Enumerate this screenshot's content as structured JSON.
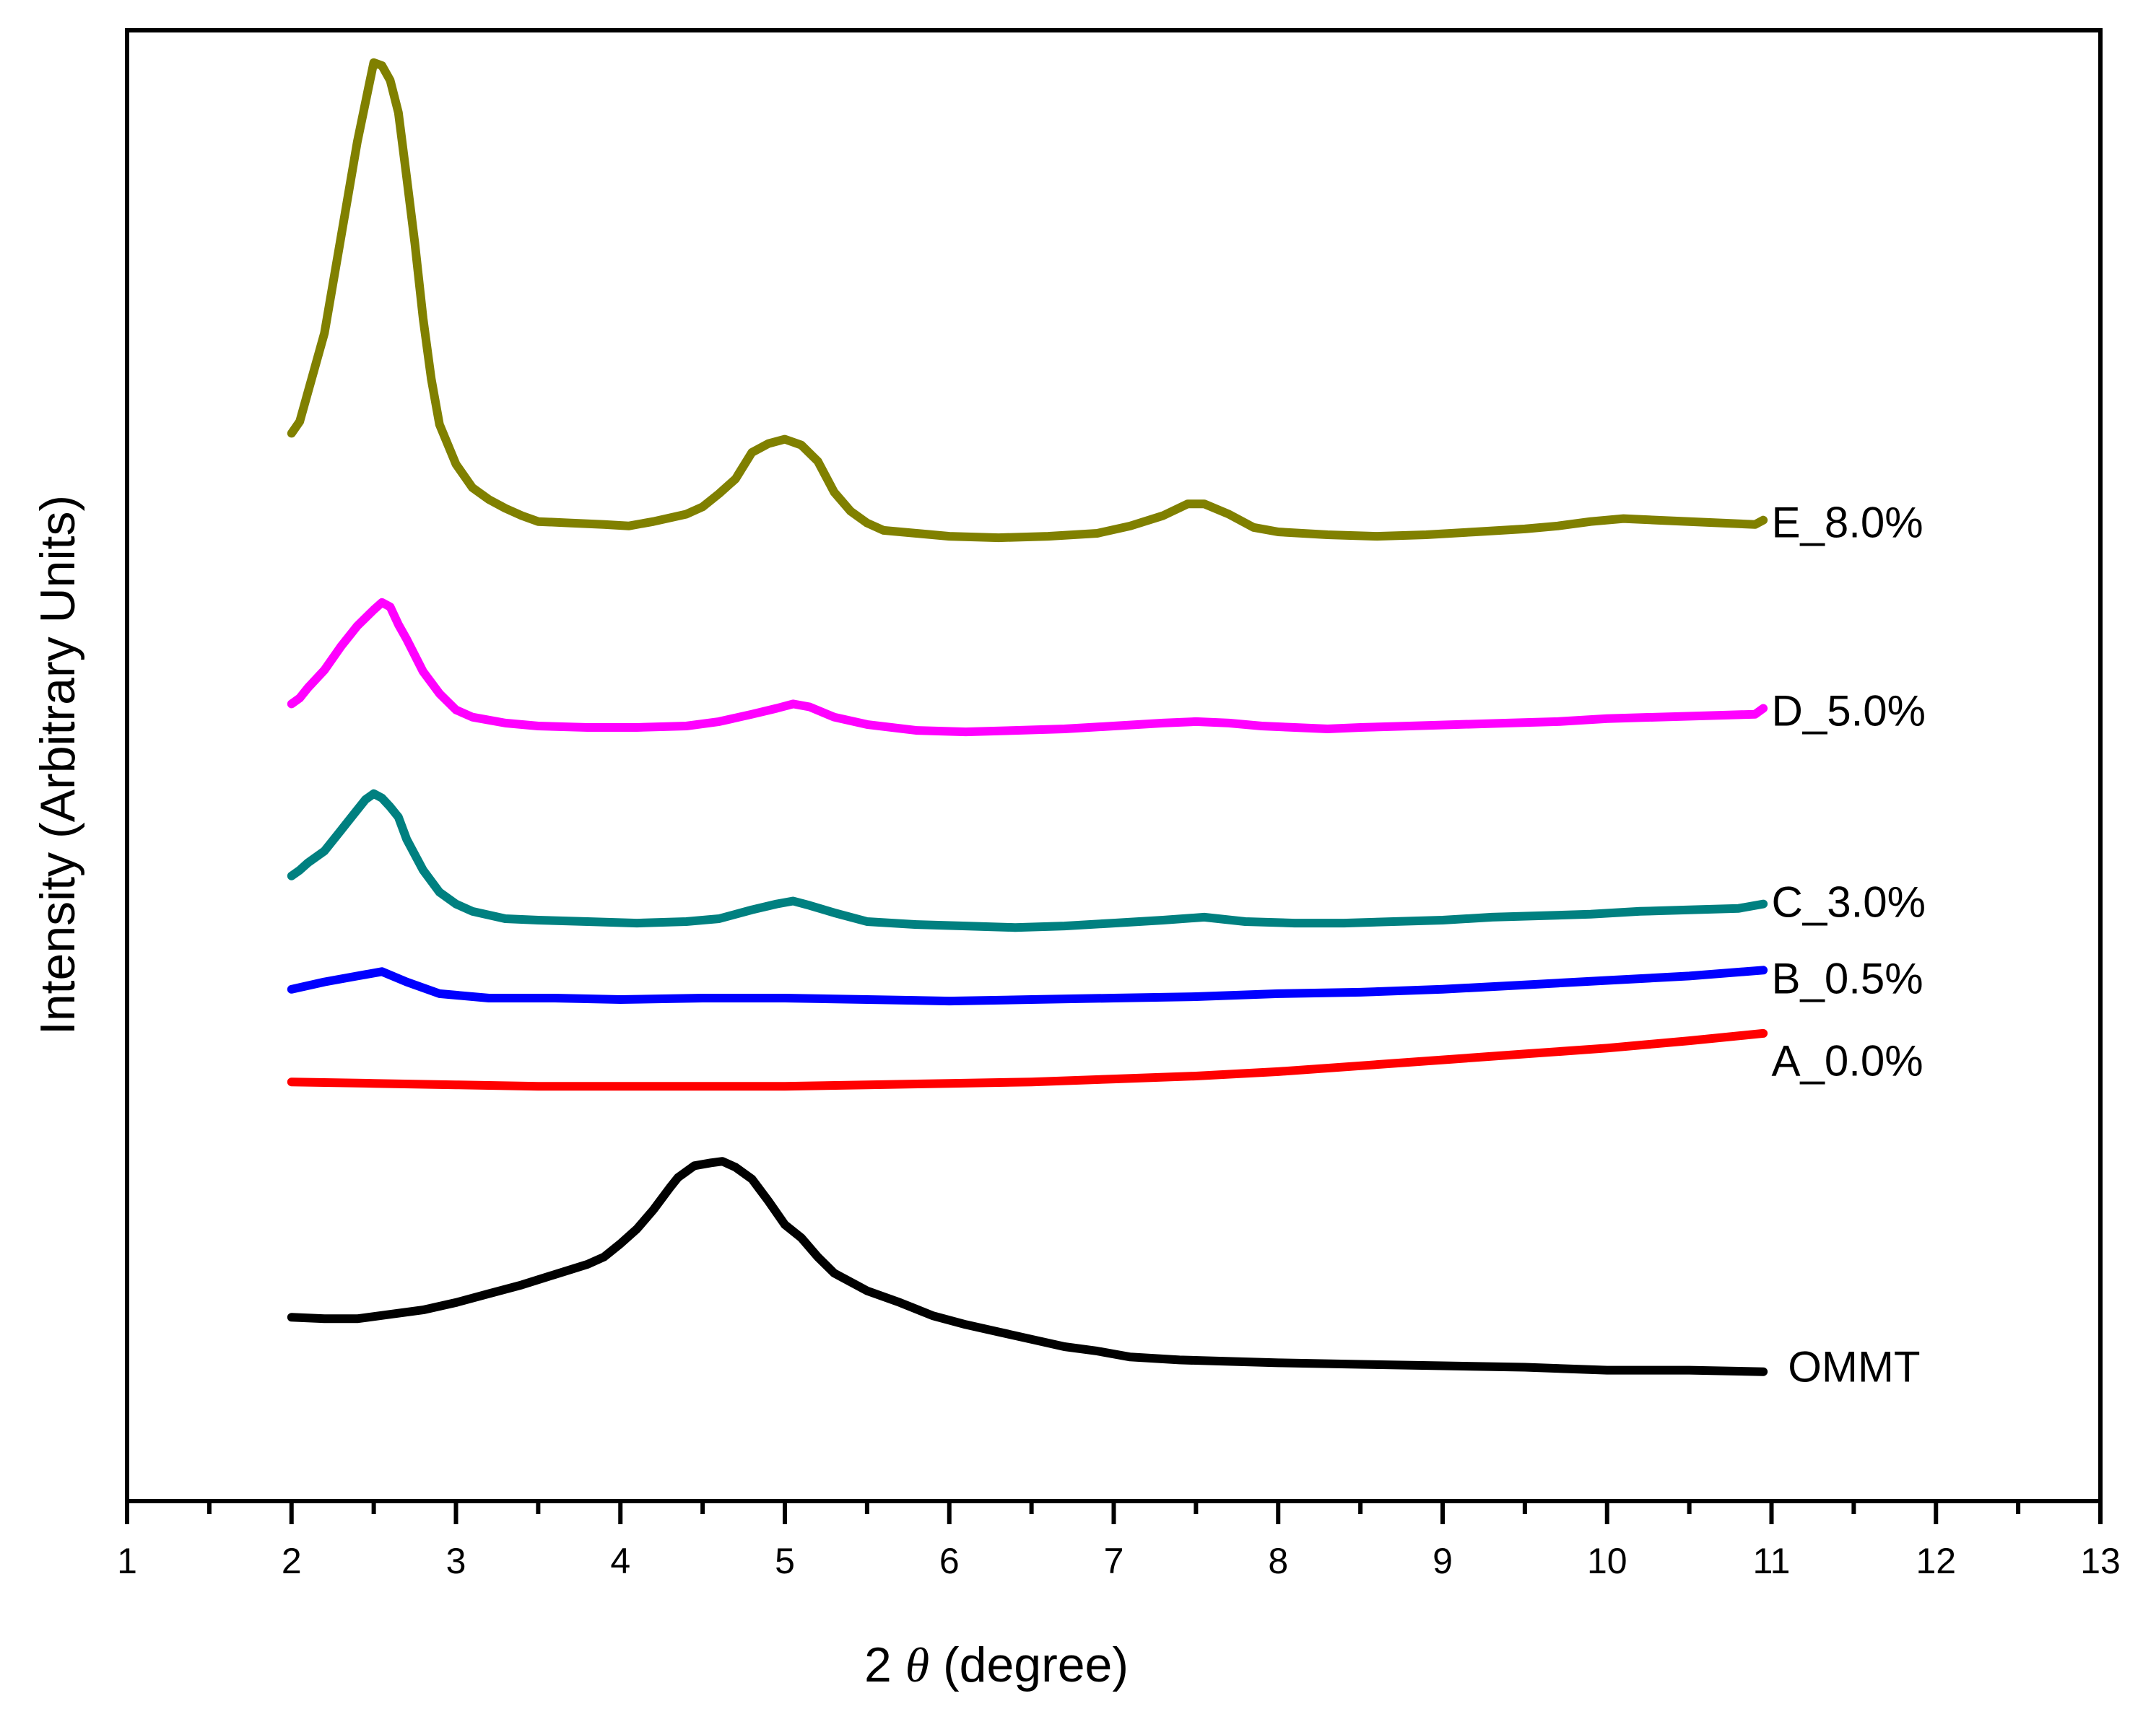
{
  "chart_data": {
    "type": "line",
    "title": "",
    "xlabel_prefix": "2 ",
    "xlabel_symbol": "θ",
    "xlabel_suffix": " (degree)",
    "ylabel": "Intensity (Arbitrary Units)",
    "xlim": [
      1,
      13
    ],
    "ylim": [
      0,
      100
    ],
    "x_major_ticks": [
      "1",
      "2",
      "3",
      "4",
      "5",
      "6",
      "7",
      "8",
      "9",
      "10",
      "11",
      "12",
      "13"
    ],
    "y_ticks_shown": false,
    "grid": false,
    "series": [
      {
        "name": "E_8.0%",
        "color": "#808000",
        "points": [
          [
            2.0,
            72.6
          ],
          [
            2.05,
            73.4
          ],
          [
            2.1,
            75.4
          ],
          [
            2.2,
            79.4
          ],
          [
            2.3,
            85.9
          ],
          [
            2.4,
            92.4
          ],
          [
            2.47,
            96.2
          ],
          [
            2.5,
            97.8
          ],
          [
            2.55,
            97.6
          ],
          [
            2.6,
            96.6
          ],
          [
            2.65,
            94.4
          ],
          [
            2.7,
            90.0
          ],
          [
            2.75,
            85.5
          ],
          [
            2.8,
            80.4
          ],
          [
            2.85,
            76.3
          ],
          [
            2.9,
            73.2
          ],
          [
            3.0,
            70.5
          ],
          [
            3.1,
            68.9
          ],
          [
            3.2,
            68.1
          ],
          [
            3.3,
            67.5
          ],
          [
            3.4,
            67.0
          ],
          [
            3.5,
            66.6
          ],
          [
            3.7,
            66.5
          ],
          [
            3.9,
            66.4
          ],
          [
            4.05,
            66.3
          ],
          [
            4.2,
            66.6
          ],
          [
            4.4,
            67.1
          ],
          [
            4.5,
            67.6
          ],
          [
            4.6,
            68.5
          ],
          [
            4.7,
            69.5
          ],
          [
            4.8,
            71.3
          ],
          [
            4.9,
            71.9
          ],
          [
            5.0,
            72.2
          ],
          [
            5.1,
            71.8
          ],
          [
            5.2,
            70.7
          ],
          [
            5.3,
            68.6
          ],
          [
            5.4,
            67.3
          ],
          [
            5.5,
            66.5
          ],
          [
            5.6,
            66.0
          ],
          [
            5.8,
            65.8
          ],
          [
            6.0,
            65.6
          ],
          [
            6.3,
            65.5
          ],
          [
            6.6,
            65.6
          ],
          [
            6.9,
            65.8
          ],
          [
            7.1,
            66.3
          ],
          [
            7.3,
            67.0
          ],
          [
            7.45,
            67.8
          ],
          [
            7.55,
            67.8
          ],
          [
            7.7,
            67.1
          ],
          [
            7.85,
            66.2
          ],
          [
            8.0,
            65.9
          ],
          [
            8.3,
            65.7
          ],
          [
            8.6,
            65.6
          ],
          [
            8.9,
            65.7
          ],
          [
            9.2,
            65.9
          ],
          [
            9.5,
            66.1
          ],
          [
            9.7,
            66.3
          ],
          [
            9.9,
            66.6
          ],
          [
            10.1,
            66.8
          ],
          [
            10.3,
            66.7
          ],
          [
            10.5,
            66.6
          ],
          [
            10.7,
            66.5
          ],
          [
            10.9,
            66.4
          ],
          [
            10.95,
            66.7
          ]
        ]
      },
      {
        "name": "D_5.0%",
        "color": "#ff00ff",
        "points": [
          [
            2.0,
            54.2
          ],
          [
            2.05,
            54.6
          ],
          [
            2.1,
            55.3
          ],
          [
            2.2,
            56.5
          ],
          [
            2.3,
            58.1
          ],
          [
            2.4,
            59.5
          ],
          [
            2.5,
            60.6
          ],
          [
            2.55,
            61.1
          ],
          [
            2.6,
            60.8
          ],
          [
            2.65,
            59.6
          ],
          [
            2.7,
            58.6
          ],
          [
            2.8,
            56.4
          ],
          [
            2.9,
            54.9
          ],
          [
            3.0,
            53.8
          ],
          [
            3.1,
            53.3
          ],
          [
            3.3,
            52.9
          ],
          [
            3.5,
            52.7
          ],
          [
            3.8,
            52.6
          ],
          [
            4.1,
            52.6
          ],
          [
            4.4,
            52.7
          ],
          [
            4.6,
            53.0
          ],
          [
            4.8,
            53.5
          ],
          [
            4.95,
            53.9
          ],
          [
            5.05,
            54.2
          ],
          [
            5.15,
            54.0
          ],
          [
            5.3,
            53.3
          ],
          [
            5.5,
            52.8
          ],
          [
            5.8,
            52.4
          ],
          [
            6.1,
            52.3
          ],
          [
            6.4,
            52.4
          ],
          [
            6.7,
            52.5
          ],
          [
            7.0,
            52.7
          ],
          [
            7.3,
            52.9
          ],
          [
            7.5,
            53.0
          ],
          [
            7.7,
            52.9
          ],
          [
            7.9,
            52.7
          ],
          [
            8.1,
            52.6
          ],
          [
            8.3,
            52.5
          ],
          [
            8.5,
            52.6
          ],
          [
            8.8,
            52.7
          ],
          [
            9.1,
            52.8
          ],
          [
            9.4,
            52.9
          ],
          [
            9.7,
            53.0
          ],
          [
            10.0,
            53.2
          ],
          [
            10.3,
            53.3
          ],
          [
            10.6,
            53.4
          ],
          [
            10.9,
            53.5
          ],
          [
            10.95,
            53.9
          ]
        ]
      },
      {
        "name": "C_3.0%",
        "color": "#008080",
        "points": [
          [
            2.0,
            42.5
          ],
          [
            2.05,
            42.9
          ],
          [
            2.1,
            43.4
          ],
          [
            2.2,
            44.2
          ],
          [
            2.3,
            45.6
          ],
          [
            2.4,
            47.0
          ],
          [
            2.45,
            47.7
          ],
          [
            2.5,
            48.1
          ],
          [
            2.55,
            47.8
          ],
          [
            2.6,
            47.2
          ],
          [
            2.65,
            46.5
          ],
          [
            2.7,
            45.0
          ],
          [
            2.8,
            42.9
          ],
          [
            2.9,
            41.4
          ],
          [
            3.0,
            40.6
          ],
          [
            3.1,
            40.1
          ],
          [
            3.3,
            39.6
          ],
          [
            3.5,
            39.5
          ],
          [
            3.8,
            39.4
          ],
          [
            4.1,
            39.3
          ],
          [
            4.4,
            39.4
          ],
          [
            4.6,
            39.6
          ],
          [
            4.8,
            40.2
          ],
          [
            4.95,
            40.6
          ],
          [
            5.05,
            40.8
          ],
          [
            5.15,
            40.5
          ],
          [
            5.3,
            40.0
          ],
          [
            5.5,
            39.4
          ],
          [
            5.8,
            39.2
          ],
          [
            6.1,
            39.1
          ],
          [
            6.4,
            39.0
          ],
          [
            6.7,
            39.1
          ],
          [
            7.0,
            39.3
          ],
          [
            7.3,
            39.5
          ],
          [
            7.55,
            39.7
          ],
          [
            7.8,
            39.4
          ],
          [
            8.1,
            39.3
          ],
          [
            8.4,
            39.3
          ],
          [
            8.7,
            39.4
          ],
          [
            9.0,
            39.5
          ],
          [
            9.3,
            39.7
          ],
          [
            9.6,
            39.8
          ],
          [
            9.9,
            39.9
          ],
          [
            10.2,
            40.1
          ],
          [
            10.5,
            40.2
          ],
          [
            10.8,
            40.3
          ],
          [
            10.95,
            40.6
          ]
        ]
      },
      {
        "name": "B_0.5%",
        "color": "#0000ff",
        "points": [
          [
            2.0,
            34.8
          ],
          [
            2.2,
            35.3
          ],
          [
            2.4,
            35.7
          ],
          [
            2.55,
            36.0
          ],
          [
            2.7,
            35.3
          ],
          [
            2.9,
            34.5
          ],
          [
            3.2,
            34.2
          ],
          [
            3.6,
            34.2
          ],
          [
            4.0,
            34.1
          ],
          [
            4.5,
            34.2
          ],
          [
            5.0,
            34.2
          ],
          [
            5.5,
            34.1
          ],
          [
            6.0,
            34.0
          ],
          [
            6.5,
            34.1
          ],
          [
            7.0,
            34.2
          ],
          [
            7.5,
            34.3
          ],
          [
            8.0,
            34.5
          ],
          [
            8.5,
            34.6
          ],
          [
            9.0,
            34.8
          ],
          [
            9.5,
            35.1
          ],
          [
            10.0,
            35.4
          ],
          [
            10.5,
            35.7
          ],
          [
            10.95,
            36.1
          ]
        ]
      },
      {
        "name": "A_0.0%",
        "color": "#ff0000",
        "points": [
          [
            2.0,
            28.5
          ],
          [
            2.5,
            28.4
          ],
          [
            3.0,
            28.3
          ],
          [
            3.5,
            28.2
          ],
          [
            4.0,
            28.2
          ],
          [
            4.5,
            28.2
          ],
          [
            5.0,
            28.2
          ],
          [
            5.5,
            28.3
          ],
          [
            6.0,
            28.4
          ],
          [
            6.5,
            28.5
          ],
          [
            7.0,
            28.7
          ],
          [
            7.5,
            28.9
          ],
          [
            8.0,
            29.2
          ],
          [
            8.5,
            29.6
          ],
          [
            9.0,
            30.0
          ],
          [
            9.5,
            30.4
          ],
          [
            10.0,
            30.8
          ],
          [
            10.5,
            31.3
          ],
          [
            10.95,
            31.8
          ]
        ]
      },
      {
        "name": "OMMT",
        "color": "#000000",
        "points": [
          [
            2.0,
            12.5
          ],
          [
            2.2,
            12.4
          ],
          [
            2.4,
            12.4
          ],
          [
            2.6,
            12.7
          ],
          [
            2.8,
            13.0
          ],
          [
            3.0,
            13.5
          ],
          [
            3.2,
            14.1
          ],
          [
            3.4,
            14.7
          ],
          [
            3.6,
            15.4
          ],
          [
            3.8,
            16.1
          ],
          [
            3.9,
            16.6
          ],
          [
            4.0,
            17.5
          ],
          [
            4.1,
            18.5
          ],
          [
            4.2,
            19.8
          ],
          [
            4.3,
            21.3
          ],
          [
            4.35,
            22.0
          ],
          [
            4.45,
            22.8
          ],
          [
            4.55,
            23.0
          ],
          [
            4.62,
            23.1
          ],
          [
            4.7,
            22.7
          ],
          [
            4.8,
            21.9
          ],
          [
            4.9,
            20.4
          ],
          [
            5.0,
            18.8
          ],
          [
            5.1,
            17.9
          ],
          [
            5.2,
            16.6
          ],
          [
            5.3,
            15.5
          ],
          [
            5.5,
            14.3
          ],
          [
            5.7,
            13.5
          ],
          [
            5.9,
            12.6
          ],
          [
            6.1,
            12.0
          ],
          [
            6.3,
            11.5
          ],
          [
            6.5,
            11.0
          ],
          [
            6.7,
            10.5
          ],
          [
            6.9,
            10.2
          ],
          [
            7.1,
            9.8
          ],
          [
            7.4,
            9.6
          ],
          [
            7.7,
            9.5
          ],
          [
            8.0,
            9.4
          ],
          [
            8.5,
            9.3
          ],
          [
            9.0,
            9.2
          ],
          [
            9.5,
            9.1
          ],
          [
            10.0,
            8.9
          ],
          [
            10.5,
            8.9
          ],
          [
            10.95,
            8.8
          ]
        ]
      }
    ],
    "labels": [
      {
        "name": "E_8.0%",
        "x": 11.0,
        "y": 66.3
      },
      {
        "name": "D_5.0%",
        "x": 11.0,
        "y": 53.5
      },
      {
        "name": "C_3.0%",
        "x": 11.0,
        "y": 40.5
      },
      {
        "name": "B_0.5%",
        "x": 11.0,
        "y": 35.3
      },
      {
        "name": "A_0.0%",
        "x": 11.0,
        "y": 29.7
      },
      {
        "name": "OMMT",
        "x": 11.1,
        "y": 8.9
      }
    ]
  }
}
